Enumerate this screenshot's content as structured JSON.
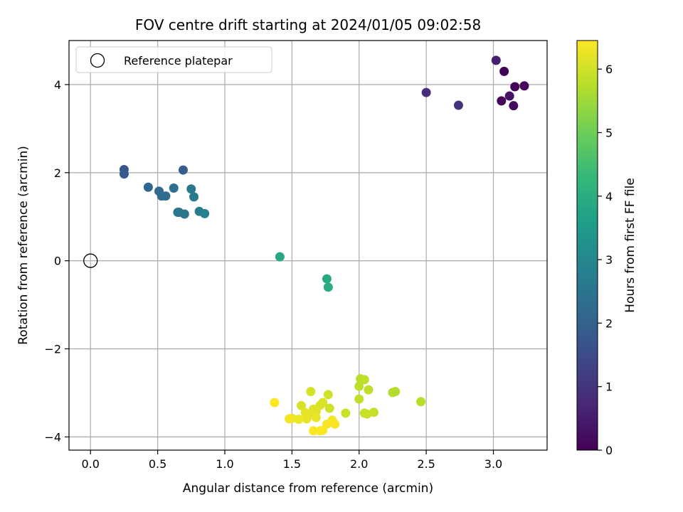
{
  "chart_data": {
    "type": "scatter",
    "title": "FOV centre drift starting at 2024/01/05 09:02:58",
    "xlabel": "Angular distance from reference (arcmin)",
    "ylabel": "Rotation from reference (arcmin)",
    "xlim": [
      -0.16,
      3.4
    ],
    "ylim": [
      -4.3,
      5.0
    ],
    "x_ticks": [
      0.0,
      0.5,
      1.0,
      1.5,
      2.0,
      2.5,
      3.0
    ],
    "x_tick_labels": [
      "0.0",
      "0.5",
      "1.0",
      "1.5",
      "2.0",
      "2.5",
      "3.0"
    ],
    "y_ticks": [
      -4,
      -2,
      0,
      2,
      4
    ],
    "y_tick_labels": [
      "−4",
      "−2",
      "0",
      "2",
      "4"
    ],
    "grid": true,
    "legend": {
      "placement": "top-left",
      "entries": [
        "Reference platepar"
      ]
    },
    "reference_point": {
      "x": 0.0,
      "y": 0.0
    },
    "colorbar": {
      "label": "Hours from first FF file",
      "range": [
        0,
        6.45
      ],
      "ticks": [
        0,
        1,
        2,
        3,
        4,
        5,
        6
      ],
      "tick_labels": [
        "0",
        "1",
        "2",
        "3",
        "4",
        "5",
        "6"
      ],
      "colormap": "viridis",
      "stops": [
        "#440154",
        "#482878",
        "#3e4989",
        "#31688e",
        "#26828e",
        "#1f9e89",
        "#35b779",
        "#6ece58",
        "#b5de2b",
        "#fde725"
      ]
    },
    "points": [
      {
        "x": 3.08,
        "y": 4.3,
        "t": 0.05
      },
      {
        "x": 3.16,
        "y": 3.95,
        "t": 0.05
      },
      {
        "x": 3.23,
        "y": 3.97,
        "t": 0.1
      },
      {
        "x": 3.06,
        "y": 3.63,
        "t": 0.1
      },
      {
        "x": 3.15,
        "y": 3.52,
        "t": 0.15
      },
      {
        "x": 3.12,
        "y": 3.74,
        "t": 0.3
      },
      {
        "x": 3.02,
        "y": 4.55,
        "t": 0.55
      },
      {
        "x": 2.5,
        "y": 3.82,
        "t": 0.85
      },
      {
        "x": 2.74,
        "y": 3.53,
        "t": 0.95
      },
      {
        "x": 0.25,
        "y": 2.07,
        "t": 1.75
      },
      {
        "x": 0.25,
        "y": 1.97,
        "t": 1.8
      },
      {
        "x": 0.69,
        "y": 2.06,
        "t": 1.9
      },
      {
        "x": 0.43,
        "y": 1.67,
        "t": 2.1
      },
      {
        "x": 0.51,
        "y": 1.58,
        "t": 2.2
      },
      {
        "x": 0.53,
        "y": 1.47,
        "t": 2.25
      },
      {
        "x": 0.56,
        "y": 1.47,
        "t": 2.3
      },
      {
        "x": 0.62,
        "y": 1.65,
        "t": 2.4
      },
      {
        "x": 0.65,
        "y": 1.1,
        "t": 2.45
      },
      {
        "x": 0.66,
        "y": 1.1,
        "t": 2.5
      },
      {
        "x": 0.7,
        "y": 1.06,
        "t": 2.55
      },
      {
        "x": 0.75,
        "y": 1.63,
        "t": 2.6
      },
      {
        "x": 0.77,
        "y": 1.45,
        "t": 2.65
      },
      {
        "x": 0.81,
        "y": 1.12,
        "t": 2.7
      },
      {
        "x": 0.85,
        "y": 1.07,
        "t": 2.8
      },
      {
        "x": 1.41,
        "y": 0.09,
        "t": 3.85
      },
      {
        "x": 1.76,
        "y": -0.41,
        "t": 3.9
      },
      {
        "x": 1.77,
        "y": -0.6,
        "t": 3.95
      },
      {
        "x": 2.27,
        "y": -2.97,
        "t": 5.7
      },
      {
        "x": 2.25,
        "y": -2.99,
        "t": 5.7
      },
      {
        "x": 2.46,
        "y": -3.2,
        "t": 5.75
      },
      {
        "x": 2.01,
        "y": -2.68,
        "t": 5.75
      },
      {
        "x": 2.04,
        "y": -2.7,
        "t": 5.8
      },
      {
        "x": 2.0,
        "y": -2.85,
        "t": 5.8
      },
      {
        "x": 2.07,
        "y": -2.93,
        "t": 5.85
      },
      {
        "x": 2.0,
        "y": -3.14,
        "t": 5.85
      },
      {
        "x": 2.11,
        "y": -3.44,
        "t": 5.9
      },
      {
        "x": 2.04,
        "y": -3.46,
        "t": 5.9
      },
      {
        "x": 2.06,
        "y": -3.48,
        "t": 5.95
      },
      {
        "x": 1.9,
        "y": -3.46,
        "t": 5.95
      },
      {
        "x": 1.77,
        "y": -3.04,
        "t": 6.0
      },
      {
        "x": 1.78,
        "y": -3.35,
        "t": 6.0
      },
      {
        "x": 1.64,
        "y": -2.97,
        "t": 6.05
      },
      {
        "x": 1.57,
        "y": -3.29,
        "t": 6.05
      },
      {
        "x": 1.71,
        "y": -3.28,
        "t": 6.1
      },
      {
        "x": 1.73,
        "y": -3.22,
        "t": 6.1
      },
      {
        "x": 1.66,
        "y": -3.37,
        "t": 6.15
      },
      {
        "x": 1.68,
        "y": -3.42,
        "t": 6.15
      },
      {
        "x": 1.6,
        "y": -3.45,
        "t": 6.2
      },
      {
        "x": 1.66,
        "y": -3.49,
        "t": 6.2
      },
      {
        "x": 1.68,
        "y": -3.56,
        "t": 6.25
      },
      {
        "x": 1.61,
        "y": -3.59,
        "t": 6.25
      },
      {
        "x": 1.55,
        "y": -3.6,
        "t": 6.3
      },
      {
        "x": 1.5,
        "y": -3.58,
        "t": 6.3
      },
      {
        "x": 1.48,
        "y": -3.59,
        "t": 6.35
      },
      {
        "x": 1.8,
        "y": -3.62,
        "t": 6.35
      },
      {
        "x": 1.82,
        "y": -3.71,
        "t": 6.38
      },
      {
        "x": 1.76,
        "y": -3.71,
        "t": 6.4
      },
      {
        "x": 1.66,
        "y": -3.86,
        "t": 6.42
      },
      {
        "x": 1.71,
        "y": -3.86,
        "t": 6.42
      },
      {
        "x": 1.73,
        "y": -3.85,
        "t": 6.44
      },
      {
        "x": 1.37,
        "y": -3.22,
        "t": 6.45
      }
    ]
  }
}
